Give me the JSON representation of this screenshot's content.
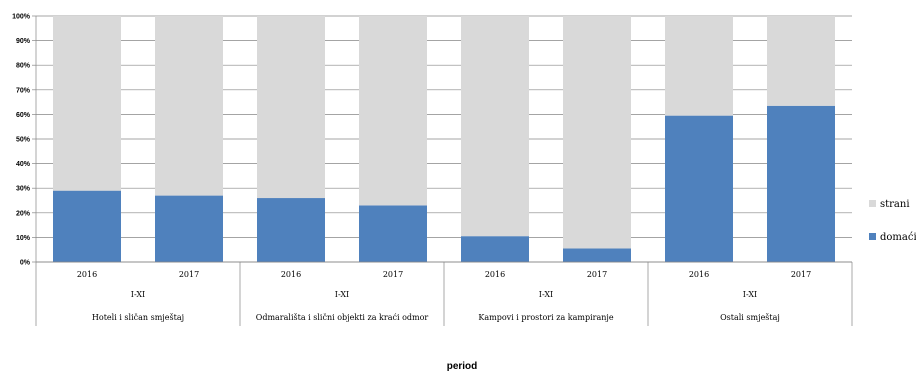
{
  "chart_data": {
    "type": "bar",
    "stacked": true,
    "percent": true,
    "xlabel": "period",
    "ylabel": "",
    "ylim": [
      0,
      100
    ],
    "yticks": [
      "0%",
      "10%",
      "20%",
      "30%",
      "40%",
      "50%",
      "60%",
      "70%",
      "80%",
      "90%",
      "100%"
    ],
    "grid": true,
    "legend_position": "right",
    "categories": [
      {
        "year": "2016",
        "period": "I-XI",
        "group": "Hoteli i sličan smještaj"
      },
      {
        "year": "2017",
        "period": "I-XI",
        "group": "Hoteli i sličan smještaj"
      },
      {
        "year": "2016",
        "period": "I-XI",
        "group": "Odmarališta i slični objekti za kraći odmor"
      },
      {
        "year": "2017",
        "period": "I-XI",
        "group": "Odmarališta i slični objekti za kraći odmor"
      },
      {
        "year": "2016",
        "period": "I-XI",
        "group": "Kampovi i prostori za kampiranje"
      },
      {
        "year": "2017",
        "period": "I-XI",
        "group": "Kampovi i prostori za kampiranje"
      },
      {
        "year": "2016",
        "period": "I-XI",
        "group": "Ostali smještaj"
      },
      {
        "year": "2017",
        "period": "I-XI",
        "group": "Ostali smještaj"
      }
    ],
    "groups": [
      {
        "label": "Hoteli i sličan smještaj",
        "period": "I-XI"
      },
      {
        "label": "Odmarališta i slični objekti za kraći odmor",
        "period": "I-XI"
      },
      {
        "label": "Kampovi i prostori za kampiranje",
        "period": "I-XI"
      },
      {
        "label": "Ostali smještaj",
        "period": "I-XI"
      }
    ],
    "series": [
      {
        "name": "domaći",
        "color": "#4f81bd",
        "values": [
          29,
          27,
          26,
          23,
          10.5,
          5.5,
          59.5,
          63.5
        ]
      },
      {
        "name": "strani",
        "color": "#d9d9d9",
        "values": [
          71,
          73,
          74,
          77,
          89.5,
          94.5,
          40.5,
          36.5
        ]
      }
    ],
    "legend": [
      {
        "name": "strani",
        "color": "#d9d9d9"
      },
      {
        "name": "domaći",
        "color": "#4f81bd"
      }
    ]
  }
}
